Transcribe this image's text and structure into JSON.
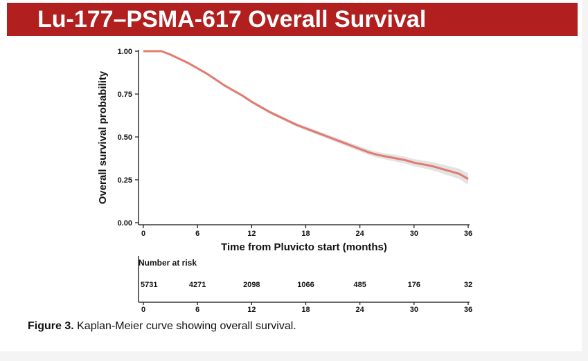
{
  "slide": {
    "title": "Lu-177–PSMA-617 Overall Survival",
    "caption_label": "Figure 3.",
    "caption_text": " Kaplan-Meier curve showing overall survival.",
    "colors": {
      "banner": "#b11f1f",
      "curve": "#e07b6e",
      "band": "#dcdcdc"
    }
  },
  "chart_data": {
    "type": "line",
    "xlabel": "Time from Pluvicto start (months)",
    "ylabel": "Overall survival probability",
    "xlim": [
      0,
      36
    ],
    "ylim": [
      0,
      1
    ],
    "x_ticks": [
      "0",
      "6",
      "12",
      "18",
      "24",
      "30",
      "36"
    ],
    "y_ticks": [
      "0.00",
      "0.25",
      "0.50",
      "0.75",
      "1.00"
    ],
    "series": [
      {
        "x": [
          0,
          1,
          2,
          3,
          4,
          5,
          6,
          7,
          8,
          9,
          10,
          11,
          12,
          13,
          14,
          15,
          16,
          17,
          18,
          19,
          20,
          21,
          22,
          23,
          24,
          25,
          26,
          27,
          28,
          29,
          30,
          31,
          32,
          33,
          34,
          35,
          36
        ],
        "y": [
          1.0,
          1.0,
          1.0,
          0.98,
          0.955,
          0.93,
          0.9,
          0.87,
          0.835,
          0.8,
          0.77,
          0.74,
          0.705,
          0.675,
          0.645,
          0.62,
          0.595,
          0.57,
          0.55,
          0.53,
          0.51,
          0.49,
          0.47,
          0.45,
          0.43,
          0.41,
          0.395,
          0.385,
          0.375,
          0.365,
          0.35,
          0.34,
          0.33,
          0.315,
          0.3,
          0.285,
          0.255
        ],
        "ci_half": [
          0,
          0,
          0,
          0.003,
          0.004,
          0.005,
          0.005,
          0.006,
          0.006,
          0.007,
          0.007,
          0.008,
          0.008,
          0.009,
          0.009,
          0.01,
          0.01,
          0.011,
          0.011,
          0.012,
          0.012,
          0.013,
          0.013,
          0.014,
          0.015,
          0.016,
          0.017,
          0.018,
          0.019,
          0.02,
          0.021,
          0.022,
          0.024,
          0.026,
          0.028,
          0.03,
          0.033
        ]
      }
    ],
    "risk_table": {
      "title": "Number at risk",
      "times": [
        "0",
        "6",
        "12",
        "18",
        "24",
        "30",
        "36"
      ],
      "counts": [
        "5731",
        "4271",
        "2098",
        "1066",
        "485",
        "176",
        "32"
      ]
    }
  }
}
